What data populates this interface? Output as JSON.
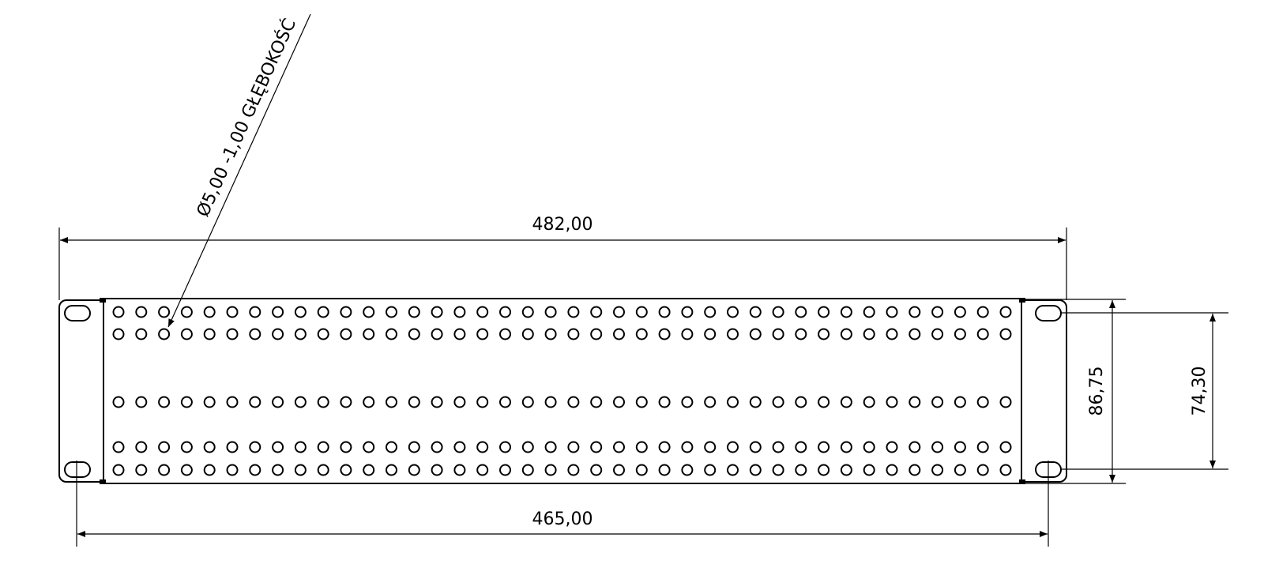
{
  "drawing": {
    "hole_callout": "Ø5,00 -1,00 GŁĘBOKOŚĆ",
    "dimensions": {
      "overall_width": "482,00",
      "mounting_hole_spacing": "465,00",
      "panel_height": "86,75",
      "vertical_hole_spacing": "74,30"
    },
    "hole_grid": {
      "columns": 40,
      "rows": 5
    },
    "line_color": "#000000",
    "background_color": "#ffffff"
  }
}
